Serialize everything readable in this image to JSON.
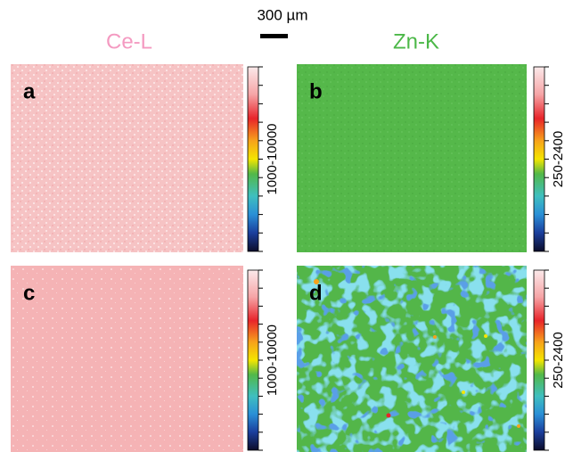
{
  "scale_bar": "300 µm",
  "columns": [
    "Ce-L",
    "Zn-K"
  ],
  "panels": [
    {
      "label": "a",
      "colorbar": "1000-10000"
    },
    {
      "label": "b",
      "colorbar": "250-2400"
    },
    {
      "label": "c",
      "colorbar": "1000-10000"
    },
    {
      "label": "d",
      "colorbar": "250-2400"
    }
  ]
}
